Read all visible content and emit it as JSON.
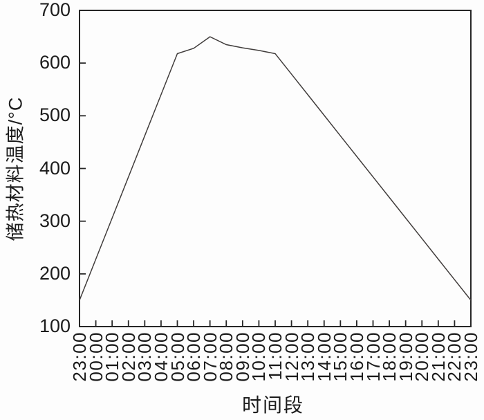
{
  "chart_data": {
    "type": "line",
    "title": "",
    "xlabel": "时间段",
    "ylabel": "储热材料温度/°C",
    "x_tick_labels": [
      "23:00",
      "00:00",
      "01:00",
      "02:00",
      "03:00",
      "04:00",
      "05:00",
      "06:00",
      "07:00",
      "08:00",
      "09:00",
      "10:00",
      "11:00",
      "12:00",
      "13:00",
      "14:00",
      "15:00",
      "16:00",
      "17:00",
      "18:00",
      "19:00",
      "20:00",
      "21:00",
      "22:00",
      "23:00"
    ],
    "values": [
      150,
      228,
      306,
      384,
      462,
      540,
      618,
      628,
      650,
      635,
      629,
      624,
      618,
      579,
      540,
      501,
      462,
      423,
      384,
      345,
      306,
      267,
      228,
      189,
      150
    ],
    "y_ticks": [
      100,
      200,
      300,
      400,
      500,
      600,
      700
    ],
    "ylim": [
      100,
      700
    ],
    "grid": false,
    "legend": "none",
    "line_color": "#413d3c",
    "axis_color": "#262626",
    "text_color": "#1c1c1c",
    "background": "#fdfdfd"
  }
}
